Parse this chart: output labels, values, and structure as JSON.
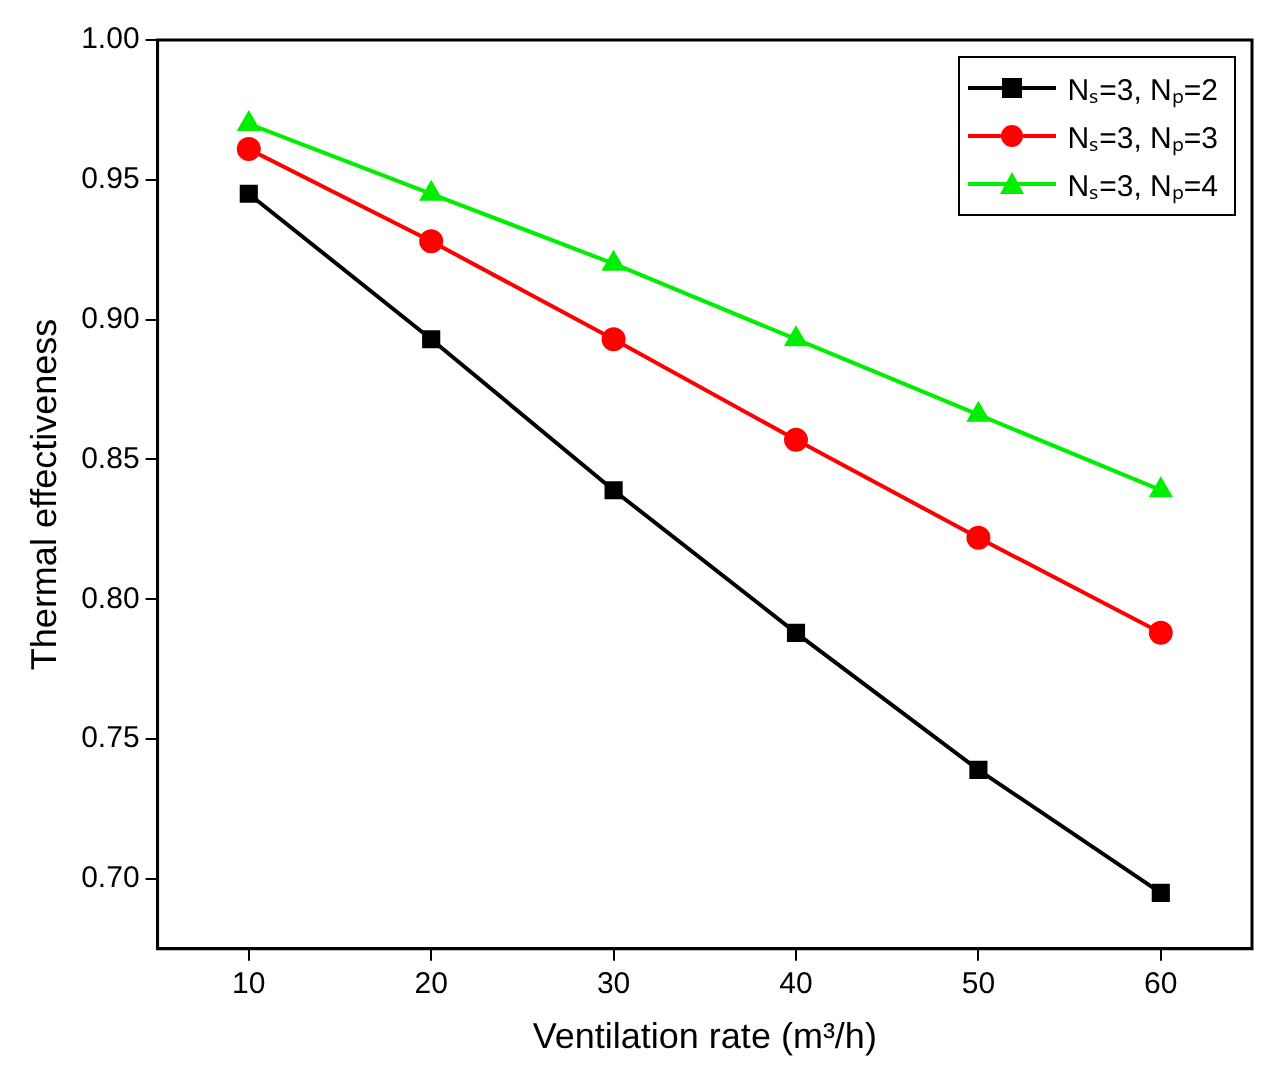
{
  "chart_data": {
    "type": "line",
    "xlabel": "Ventilation rate (m³/h)",
    "ylabel": "Thermal effectiveness",
    "x": [
      10,
      20,
      30,
      40,
      50,
      60
    ],
    "series": [
      {
        "name": "Nₛ=3, Nₚ=2",
        "color": "#000000",
        "marker": "square",
        "values": [
          0.945,
          0.893,
          0.839,
          0.788,
          0.739,
          0.695
        ]
      },
      {
        "name": "Nₛ=3, Nₚ=3",
        "color": "#ff0000",
        "marker": "circle",
        "values": [
          0.961,
          0.928,
          0.893,
          0.857,
          0.822,
          0.788
        ]
      },
      {
        "name": "Nₛ=3, Nₚ=4",
        "color": "#00ee00",
        "marker": "triangle",
        "values": [
          0.97,
          0.945,
          0.92,
          0.893,
          0.866,
          0.839
        ]
      }
    ],
    "xlim": [
      5,
      65
    ],
    "xticks": [
      10,
      20,
      30,
      40,
      50,
      60
    ],
    "ylim": [
      0.675,
      1.0
    ],
    "yticks": [
      {
        "value": 0.7,
        "label": "0.70"
      },
      {
        "value": 0.75,
        "label": "0.75"
      },
      {
        "value": 0.8,
        "label": "0.80"
      },
      {
        "value": 0.85,
        "label": "0.85"
      },
      {
        "value": 0.9,
        "label": "0.90"
      },
      {
        "value": 0.95,
        "label": "0.95"
      },
      {
        "value": 1.0,
        "label": "1.00"
      }
    ],
    "grid": false,
    "legend": "top right",
    "line_style": "solid"
  }
}
